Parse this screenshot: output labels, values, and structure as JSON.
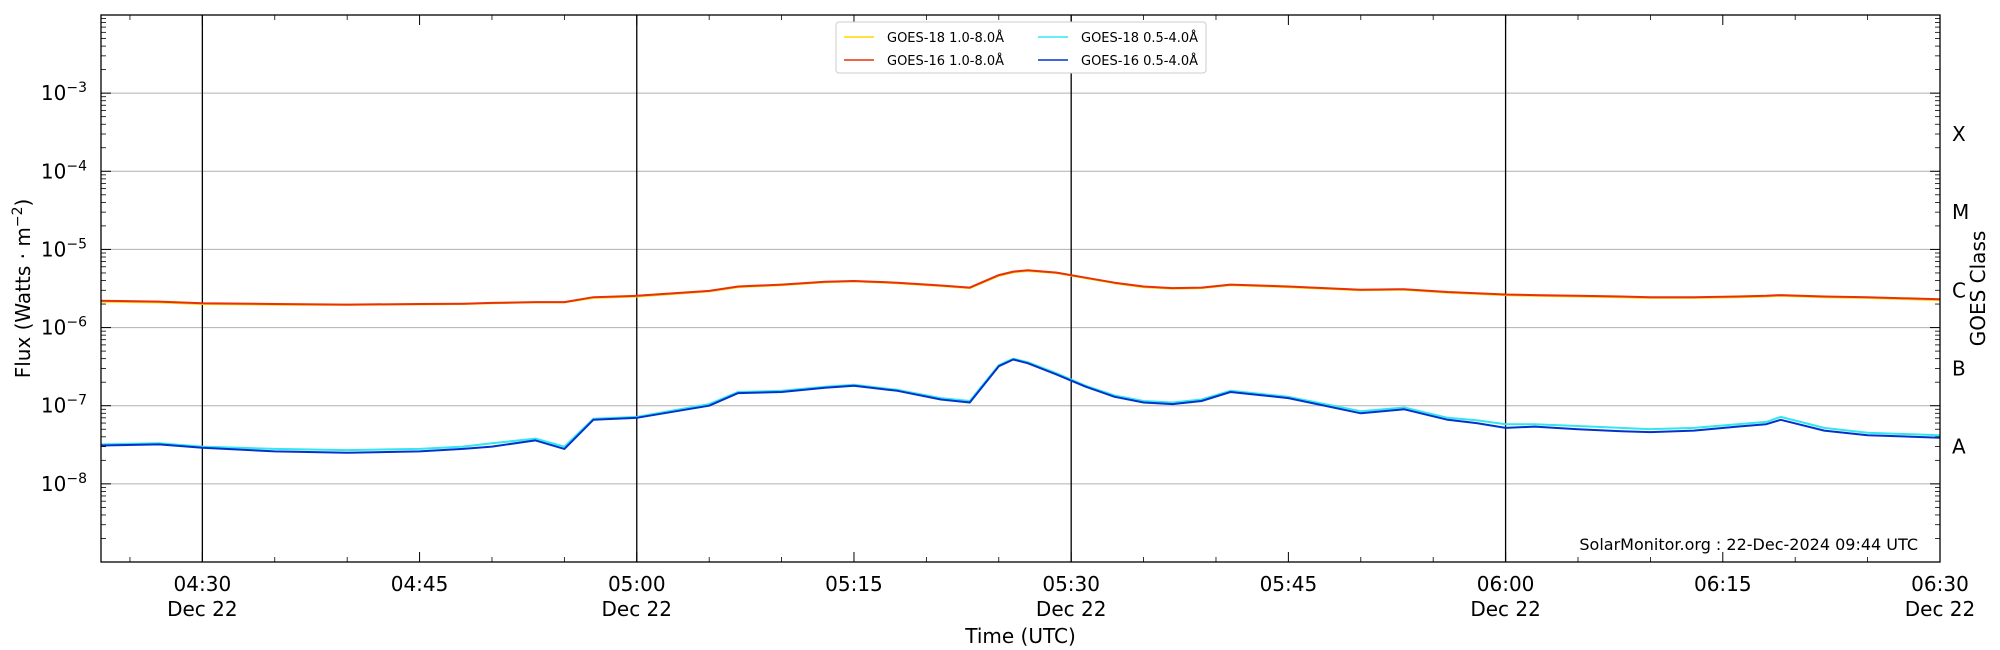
{
  "chart_data": {
    "type": "line",
    "y_scale": "log",
    "ylim": [
      1e-09,
      0.01
    ],
    "xlim": [
      "04:23",
      "06:30"
    ],
    "ylabel": "Flux (Watts · m",
    "ylabel_sup": "−2",
    "ylabel_close": ")",
    "xlabel": "Time (UTC)",
    "right_axis_label": "GOES Class",
    "classes": [
      {
        "label": "A",
        "y": 3e-08
      },
      {
        "label": "B",
        "y": 3e-07
      },
      {
        "label": "C",
        "y": 3e-06
      },
      {
        "label": "M",
        "y": 3e-05
      },
      {
        "label": "X",
        "y": 0.0003
      }
    ],
    "y_ticks": [
      {
        "value": 1e-08,
        "base": "10",
        "exp": "−8"
      },
      {
        "value": 1e-07,
        "base": "10",
        "exp": "−7"
      },
      {
        "value": 1e-06,
        "base": "10",
        "exp": "−6"
      },
      {
        "value": 1e-05,
        "base": "10",
        "exp": "−5"
      },
      {
        "value": 0.0001,
        "base": "10",
        "exp": "−4"
      },
      {
        "value": 0.001,
        "base": "10",
        "exp": "−3"
      }
    ],
    "x_ticks": [
      {
        "time": "04:30",
        "label": "04:30",
        "date": "Dec 22",
        "day_line": false
      },
      {
        "time": "04:45",
        "label": "04:45",
        "date": "",
        "day_line": false
      },
      {
        "time": "05:00",
        "label": "05:00",
        "date": "Dec 22",
        "day_line": false
      },
      {
        "time": "05:15",
        "label": "05:15",
        "date": "",
        "day_line": false
      },
      {
        "time": "05:30",
        "label": "05:30",
        "date": "Dec 22",
        "day_line": false
      },
      {
        "time": "05:45",
        "label": "05:45",
        "date": "",
        "day_line": false
      },
      {
        "time": "06:00",
        "label": "06:00",
        "date": "Dec 22",
        "day_line": false
      },
      {
        "time": "06:15",
        "label": "06:15",
        "date": "",
        "day_line": false
      },
      {
        "time": "06:30",
        "label": "06:30",
        "date": "Dec 22",
        "day_line": false
      }
    ],
    "vertical_lines": [
      "04:30",
      "05:00",
      "05:30",
      "06:00"
    ],
    "grid": "horizontal at decades",
    "legend": {
      "placement": "top-center",
      "entries": [
        {
          "name": "GOES-18 1.0-8.0Å",
          "color": "#ffd700"
        },
        {
          "name": "GOES-18 0.5-4.0Å",
          "color": "#33e6f0"
        },
        {
          "name": "GOES-16 1.0-8.0Å",
          "color": "#e8300a"
        },
        {
          "name": "GOES-16 0.5-4.0Å",
          "color": "#0033cc"
        }
      ]
    },
    "x": [
      "04:23",
      "04:27",
      "04:30",
      "04:35",
      "04:40",
      "04:45",
      "04:48",
      "04:50",
      "04:53",
      "04:55",
      "04:57",
      "05:00",
      "05:05",
      "05:07",
      "05:10",
      "05:13",
      "05:15",
      "05:18",
      "05:21",
      "05:23",
      "05:25",
      "05:26",
      "05:27",
      "05:29",
      "05:31",
      "05:33",
      "05:35",
      "05:37",
      "05:39",
      "05:41",
      "05:45",
      "05:50",
      "05:53",
      "05:56",
      "05:58",
      "06:00",
      "06:02",
      "06:05",
      "06:08",
      "06:10",
      "06:13",
      "06:16",
      "06:18",
      "06:19",
      "06:22",
      "06:25",
      "06:30"
    ],
    "series": [
      {
        "name": "GOES-18 1.0-8.0Å",
        "color": "#ffd700",
        "values": [
          2.15e-06,
          2.1e-06,
          2e-06,
          1.97e-06,
          1.95e-06,
          1.98e-06,
          2e-06,
          2.05e-06,
          2.1e-06,
          2.1e-06,
          2.4e-06,
          2.5e-06,
          2.9e-06,
          3.3e-06,
          3.5e-06,
          3.8e-06,
          3.9e-06,
          3.7e-06,
          3.4e-06,
          3.2e-06,
          4.6e-06,
          5.1e-06,
          5.3e-06,
          5e-06,
          4.3e-06,
          3.7e-06,
          3.3e-06,
          3.15e-06,
          3.2e-06,
          3.5e-06,
          3.3e-06,
          3e-06,
          3.05e-06,
          2.8e-06,
          2.7e-06,
          2.6e-06,
          2.55e-06,
          2.5e-06,
          2.45e-06,
          2.4e-06,
          2.4e-06,
          2.45e-06,
          2.5e-06,
          2.55e-06,
          2.45e-06,
          2.4e-06,
          2.25e-06
        ]
      },
      {
        "name": "GOES-16 1.0-8.0Å",
        "color": "#e8300a",
        "values": [
          2.2e-06,
          2.15e-06,
          2.05e-06,
          2e-06,
          1.97e-06,
          2e-06,
          2.02e-06,
          2.07e-06,
          2.12e-06,
          2.12e-06,
          2.45e-06,
          2.55e-06,
          2.95e-06,
          3.35e-06,
          3.55e-06,
          3.85e-06,
          3.95e-06,
          3.75e-06,
          3.45e-06,
          3.25e-06,
          4.7e-06,
          5.2e-06,
          5.4e-06,
          5.05e-06,
          4.35e-06,
          3.75e-06,
          3.35e-06,
          3.2e-06,
          3.25e-06,
          3.55e-06,
          3.35e-06,
          3.05e-06,
          3.1e-06,
          2.85e-06,
          2.75e-06,
          2.65e-06,
          2.6e-06,
          2.55e-06,
          2.5e-06,
          2.45e-06,
          2.45e-06,
          2.5e-06,
          2.55e-06,
          2.6e-06,
          2.5e-06,
          2.45e-06,
          2.3e-06
        ]
      },
      {
        "name": "GOES-18 0.5-4.0Å",
        "color": "#33e6f0",
        "values": [
          3.2e-08,
          3.3e-08,
          3e-08,
          2.8e-08,
          2.7e-08,
          2.8e-08,
          3e-08,
          3.3e-08,
          3.8e-08,
          3e-08,
          6.8e-08,
          7.2e-08,
          1.05e-07,
          1.5e-07,
          1.55e-07,
          1.75e-07,
          1.85e-07,
          1.6e-07,
          1.25e-07,
          1.15e-07,
          3.3e-07,
          4e-07,
          3.6e-07,
          2.6e-07,
          1.8e-07,
          1.35e-07,
          1.15e-07,
          1.1e-07,
          1.2e-07,
          1.55e-07,
          1.3e-07,
          8.5e-08,
          9.5e-08,
          7e-08,
          6.5e-08,
          5.8e-08,
          5.8e-08,
          5.5e-08,
          5.2e-08,
          5e-08,
          5.2e-08,
          5.8e-08,
          6.2e-08,
          7.2e-08,
          5.2e-08,
          4.5e-08,
          4.2e-08
        ]
      },
      {
        "name": "GOES-16 0.5-4.0Å",
        "color": "#0033cc",
        "values": [
          3.1e-08,
          3.2e-08,
          2.9e-08,
          2.6e-08,
          2.5e-08,
          2.6e-08,
          2.8e-08,
          3e-08,
          3.6e-08,
          2.8e-08,
          6.6e-08,
          7e-08,
          1e-07,
          1.45e-07,
          1.5e-07,
          1.7e-07,
          1.8e-07,
          1.55e-07,
          1.2e-07,
          1.1e-07,
          3.2e-07,
          3.9e-07,
          3.5e-07,
          2.5e-07,
          1.75e-07,
          1.3e-07,
          1.1e-07,
          1.05e-07,
          1.15e-07,
          1.5e-07,
          1.25e-07,
          8e-08,
          9e-08,
          6.6e-08,
          6e-08,
          5.2e-08,
          5.4e-08,
          5e-08,
          4.7e-08,
          4.6e-08,
          4.8e-08,
          5.4e-08,
          5.8e-08,
          6.6e-08,
          4.8e-08,
          4.2e-08,
          3.9e-08
        ]
      }
    ]
  },
  "credit": "SolarMonitor.org : 22-Dec-2024 09:44 UTC"
}
